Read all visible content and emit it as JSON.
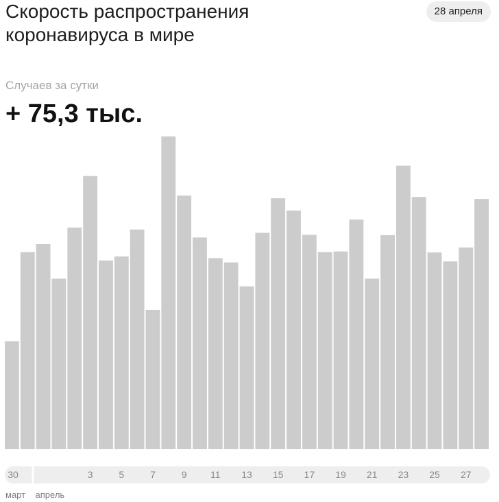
{
  "header": {
    "title_line1": "Скорость распространения",
    "title_line2": "коронавируса в мире",
    "date_badge": "28 апреля"
  },
  "summary": {
    "label": "Случаев за сутки",
    "value": "+ 75,3 тыс."
  },
  "colors": {
    "bar": "#cccccc",
    "axis_pill": "#eeeeee",
    "axis_pill_active": "#f6f6f6",
    "tick_text": "#888888"
  },
  "chart_data": {
    "type": "bar",
    "title": "Скорость распространения коронавируса в мире",
    "ylabel": "Случаев за сутки",
    "unit": "тыс.",
    "categories": [
      "29 марта",
      "30 марта",
      "31 марта",
      "1 апреля",
      "2 апреля",
      "3 апреля",
      "4 апреля",
      "5 апреля",
      "6 апреля",
      "7 апреля",
      "8 апреля",
      "9 апреля",
      "10 апреля",
      "11 апреля",
      "12 апреля",
      "13 апреля",
      "14 апреля",
      "15 апреля",
      "16 апреля",
      "17 апреля",
      "18 апреля",
      "19 апреля",
      "20 апреля",
      "21 апреля",
      "22 апреля",
      "23 апреля",
      "24 апреля",
      "25 апреля",
      "26 апреля",
      "27 апреля",
      "28 апреля"
    ],
    "values": [
      32.5,
      59.3,
      61.7,
      51.3,
      66.7,
      82.2,
      56.8,
      58.0,
      66.1,
      41.9,
      94.1,
      76.3,
      63.7,
      57.5,
      56.2,
      49.0,
      65.1,
      75.5,
      71.8,
      64.5,
      59.3,
      59.5,
      69.1,
      51.3,
      64.4,
      85.3,
      75.9,
      59.2,
      56.5,
      60.7,
      75.3
    ],
    "ylim": [
      0,
      94.1
    ],
    "latest_value": 75.3,
    "x_tick_labels": [
      {
        "index": 1,
        "label": "30"
      },
      {
        "index": 5,
        "label": "3"
      },
      {
        "index": 7,
        "label": "5"
      },
      {
        "index": 9,
        "label": "7"
      },
      {
        "index": 11,
        "label": "9"
      },
      {
        "index": 13,
        "label": "11"
      },
      {
        "index": 15,
        "label": "13"
      },
      {
        "index": 17,
        "label": "15"
      },
      {
        "index": 19,
        "label": "17"
      },
      {
        "index": 21,
        "label": "19"
      },
      {
        "index": 23,
        "label": "21"
      },
      {
        "index": 25,
        "label": "23"
      },
      {
        "index": 27,
        "label": "25"
      },
      {
        "index": 29,
        "label": "27"
      }
    ],
    "month_labels": [
      {
        "start_index": 0,
        "label": "март"
      },
      {
        "start_index": 3,
        "label": "апрель"
      }
    ],
    "grid": false,
    "legend": "none"
  }
}
